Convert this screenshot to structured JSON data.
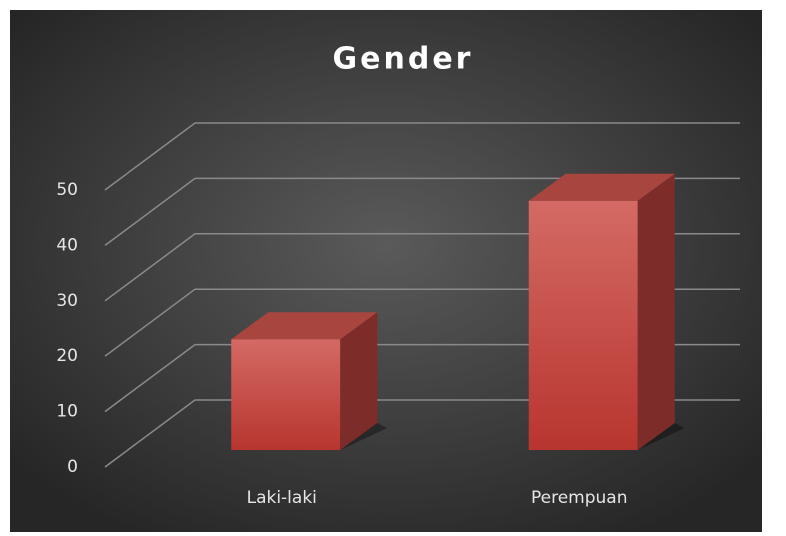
{
  "chart_data": {
    "type": "bar3d",
    "title": "Gender",
    "categories": [
      "Laki-laki",
      "Perempuan"
    ],
    "values": [
      20,
      45
    ],
    "color": "#c8453f",
    "ylim": [
      0,
      50
    ],
    "yticks": [
      0,
      10,
      20,
      30,
      40,
      50
    ],
    "grid": true
  }
}
